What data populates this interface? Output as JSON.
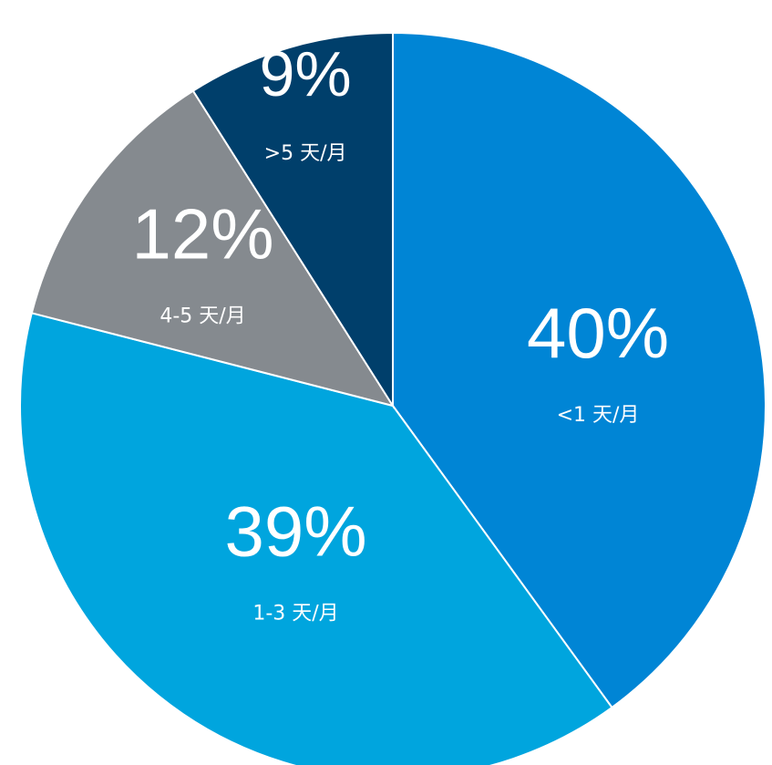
{
  "chart_data": {
    "type": "pie",
    "title": "",
    "start_angle_deg": 0,
    "direction": "clockwise",
    "slices": [
      {
        "label": "<1 天/月",
        "value": 40,
        "value_label": "40%",
        "color": "#0085d5"
      },
      {
        "label": "1-3 天/月",
        "value": 39,
        "value_label": "39%",
        "color": "#00a5de"
      },
      {
        "label": "4-5 天/月",
        "value": 12,
        "value_label": "12%",
        "color": "#858a8f"
      },
      {
        "label": ">5 天/月",
        "value": 9,
        "value_label": "9%",
        "color": "#003f6b"
      }
    ]
  }
}
